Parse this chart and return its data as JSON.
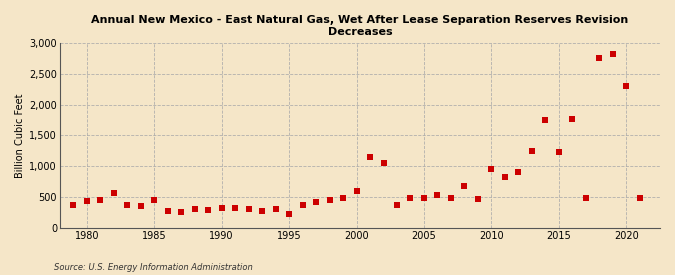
{
  "title": "Annual New Mexico - East Natural Gas, Wet After Lease Separation Reserves Revision\nDecreases",
  "ylabel": "Billion Cubic Feet",
  "source": "Source: U.S. Energy Information Administration",
  "background_color": "#f5e6c8",
  "plot_background_color": "#f5e6c8",
  "marker_color": "#cc0000",
  "marker_size": 4,
  "xlim": [
    1978,
    2022.5
  ],
  "ylim": [
    0,
    3000
  ],
  "yticks": [
    0,
    500,
    1000,
    1500,
    2000,
    2500,
    3000
  ],
  "xticks": [
    1980,
    1985,
    1990,
    1995,
    2000,
    2005,
    2010,
    2015,
    2020
  ],
  "years": [
    1979,
    1980,
    1981,
    1982,
    1983,
    1984,
    1985,
    1986,
    1987,
    1988,
    1989,
    1990,
    1991,
    1992,
    1993,
    1994,
    1995,
    1996,
    1997,
    1998,
    1999,
    2000,
    2001,
    2002,
    2003,
    2004,
    2005,
    2006,
    2007,
    2008,
    2009,
    2010,
    2011,
    2012,
    2013,
    2014,
    2015,
    2016,
    2017,
    2018,
    2019,
    2020,
    2021
  ],
  "values": [
    380,
    430,
    450,
    560,
    370,
    350,
    460,
    280,
    260,
    300,
    290,
    320,
    330,
    310,
    280,
    310,
    220,
    380,
    420,
    460,
    490,
    600,
    1150,
    1050,
    380,
    490,
    480,
    530,
    490,
    680,
    470,
    950,
    820,
    900,
    1250,
    1750,
    1230,
    1760,
    490,
    2760,
    2820,
    2300,
    490
  ]
}
